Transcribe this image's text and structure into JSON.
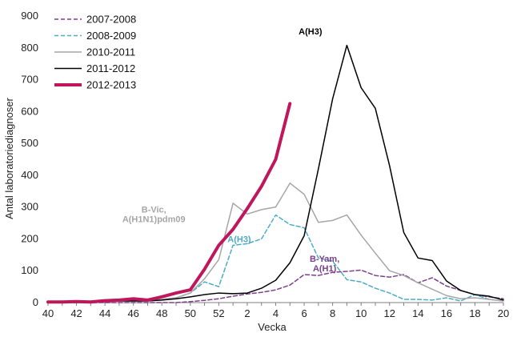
{
  "chart_data": {
    "type": "line",
    "xlabel": "Vecka",
    "ylabel": "Antal laboratoriediagnoser",
    "ylim": [
      0,
      900
    ],
    "y_ticks": [
      "0",
      "100",
      "200",
      "300",
      "400",
      "500",
      "600",
      "700",
      "800",
      "900"
    ],
    "x_tick_labels": [
      "40",
      "42",
      "44",
      "46",
      "48",
      "50",
      "52",
      "2",
      "4",
      "6",
      "8",
      "10",
      "12",
      "14",
      "16",
      "18",
      "20"
    ],
    "x_weeks": [
      40,
      41,
      42,
      43,
      44,
      45,
      46,
      47,
      48,
      49,
      50,
      51,
      52,
      1,
      2,
      3,
      4,
      5,
      6,
      7,
      8,
      9,
      10,
      11,
      12,
      13,
      14,
      15,
      16,
      17,
      18,
      19,
      20
    ],
    "grid": false,
    "legend_position": "top-left",
    "series": [
      {
        "name": "2007-2008",
        "color": "#7b3f8c",
        "dash": "dashed",
        "width": 1.5,
        "values": [
          0,
          0,
          0,
          0,
          0,
          0,
          0,
          0,
          0,
          0,
          3,
          7,
          12,
          20,
          27,
          32,
          40,
          55,
          88,
          85,
          95,
          98,
          102,
          85,
          80,
          88,
          62,
          78,
          52,
          38,
          25,
          18,
          12
        ]
      },
      {
        "name": "2008-2009",
        "color": "#4bacc6",
        "dash": "dashed",
        "width": 1.5,
        "values": [
          0,
          0,
          0,
          0,
          5,
          5,
          5,
          5,
          10,
          15,
          30,
          65,
          50,
          180,
          185,
          200,
          275,
          245,
          235,
          140,
          130,
          72,
          65,
          45,
          30,
          10,
          10,
          8,
          15,
          5,
          25,
          10,
          5
        ]
      },
      {
        "name": "2010-2011",
        "color": "#a6a6a6",
        "dash": "solid",
        "width": 1.5,
        "values": [
          0,
          0,
          0,
          0,
          5,
          5,
          5,
          5,
          10,
          15,
          30,
          75,
          135,
          312,
          278,
          292,
          300,
          375,
          340,
          252,
          258,
          275,
          212,
          155,
          100,
          85,
          62,
          42,
          22,
          12,
          15,
          10,
          5
        ]
      },
      {
        "name": "2011-2012",
        "color": "#000000",
        "dash": "solid",
        "width": 1.5,
        "values": [
          2,
          2,
          3,
          2,
          3,
          5,
          5,
          5,
          8,
          12,
          18,
          25,
          30,
          28,
          30,
          45,
          70,
          125,
          210,
          420,
          640,
          808,
          675,
          610,
          430,
          220,
          140,
          132,
          68,
          38,
          25,
          20,
          8
        ]
      },
      {
        "name": "2012-2013",
        "color": "#c0175c",
        "dash": "solid",
        "width": 4,
        "values": [
          2,
          2,
          3,
          2,
          6,
          8,
          12,
          8,
          18,
          30,
          40,
          105,
          180,
          230,
          295,
          365,
          450,
          625
        ]
      }
    ],
    "annotations": [
      {
        "text": "A(H3)",
        "color": "#000000",
        "week_index": 19,
        "value": 842
      },
      {
        "text": "B-Vic,",
        "color": "#a6a6a6",
        "week_index": 8,
        "value": 283
      },
      {
        "text": "A(H1N1)pdm09",
        "color": "#a6a6a6",
        "week_index": 8,
        "value": 253
      },
      {
        "text": "A(H3)",
        "color": "#4bacc6",
        "week_index": 14,
        "value": 190
      },
      {
        "text": "B-Yam,",
        "color": "#7b3f8c",
        "week_index": 20,
        "value": 128
      },
      {
        "text": "A(H1)",
        "color": "#7b3f8c",
        "week_index": 20,
        "value": 98
      }
    ]
  }
}
